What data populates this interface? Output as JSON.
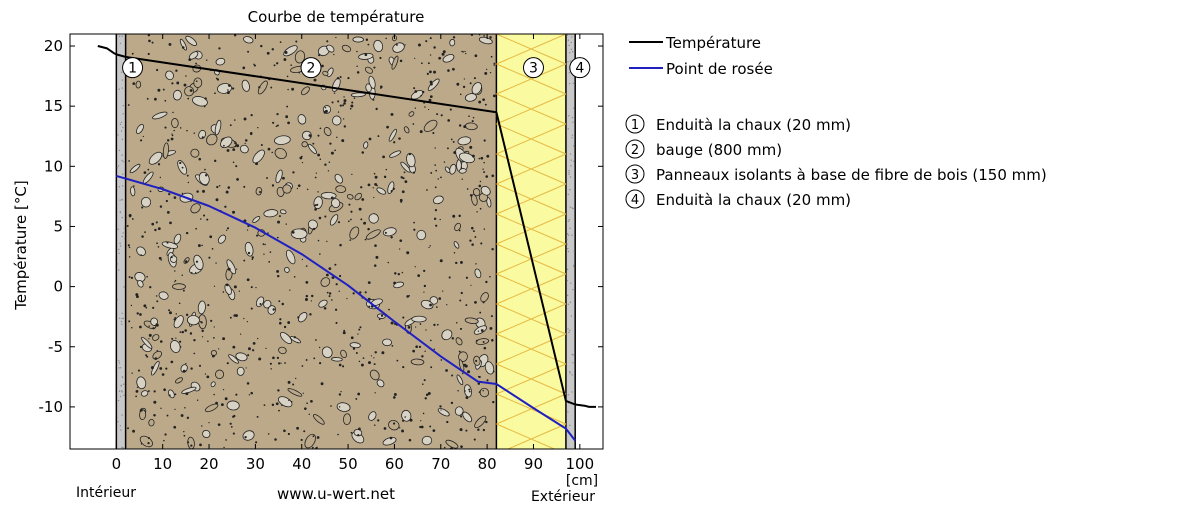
{
  "chart_data": {
    "type": "line",
    "title": "Courbe de température",
    "xlabel": "[cm]",
    "ylabel": "Température [°C]",
    "xlim": [
      -10,
      105
    ],
    "ylim": [
      -13.5,
      21
    ],
    "xticks": [
      0,
      10,
      20,
      30,
      40,
      50,
      60,
      70,
      80,
      90,
      100
    ],
    "yticks": [
      20,
      15,
      10,
      5,
      0,
      -5,
      -10
    ],
    "grid": false,
    "legend_position": "right",
    "interior_label": "Intérieur",
    "exterior_label": "Extérieur",
    "source": "www.u-wert.net",
    "layers": [
      {
        "num": "1",
        "label": "Enduità la chaux (20 mm)",
        "x_start": 0,
        "x_end": 2,
        "fill": "#c8c8c8",
        "pattern": "plaster"
      },
      {
        "num": "2",
        "label": "bauge (800 mm)",
        "x_start": 2,
        "x_end": 82,
        "fill": "#bba98a",
        "pattern": "pebbles"
      },
      {
        "num": "3",
        "label": "Panneaux isolants à base de fibre de bois (150 mm)",
        "x_start": 82,
        "x_end": 97,
        "fill": "#fafaa0",
        "pattern": "insulation"
      },
      {
        "num": "4",
        "label": "Enduità la chaux (20 mm)",
        "x_start": 97,
        "x_end": 99,
        "fill": "#c8c8c8",
        "pattern": "plaster"
      }
    ],
    "series": [
      {
        "name": "Température",
        "color": "#000000",
        "x": [
          -4,
          -2,
          -0.5,
          0,
          2,
          82,
          97,
          99,
          101,
          102,
          103.5
        ],
        "y": [
          20,
          19.8,
          19.4,
          19.3,
          19.1,
          14.5,
          -9.5,
          -9.8,
          -9.9,
          -10,
          -10
        ]
      },
      {
        "name": "Point de rosée",
        "color": "#2020c0",
        "x": [
          0,
          10,
          20,
          30,
          40,
          50,
          60,
          70,
          78,
          82,
          90,
          97,
          99
        ],
        "y": [
          9.2,
          8.1,
          6.7,
          4.9,
          2.7,
          0.1,
          -2.9,
          -5.8,
          -7.9,
          -8.1,
          -10.1,
          -11.8,
          -12.8
        ]
      }
    ]
  }
}
